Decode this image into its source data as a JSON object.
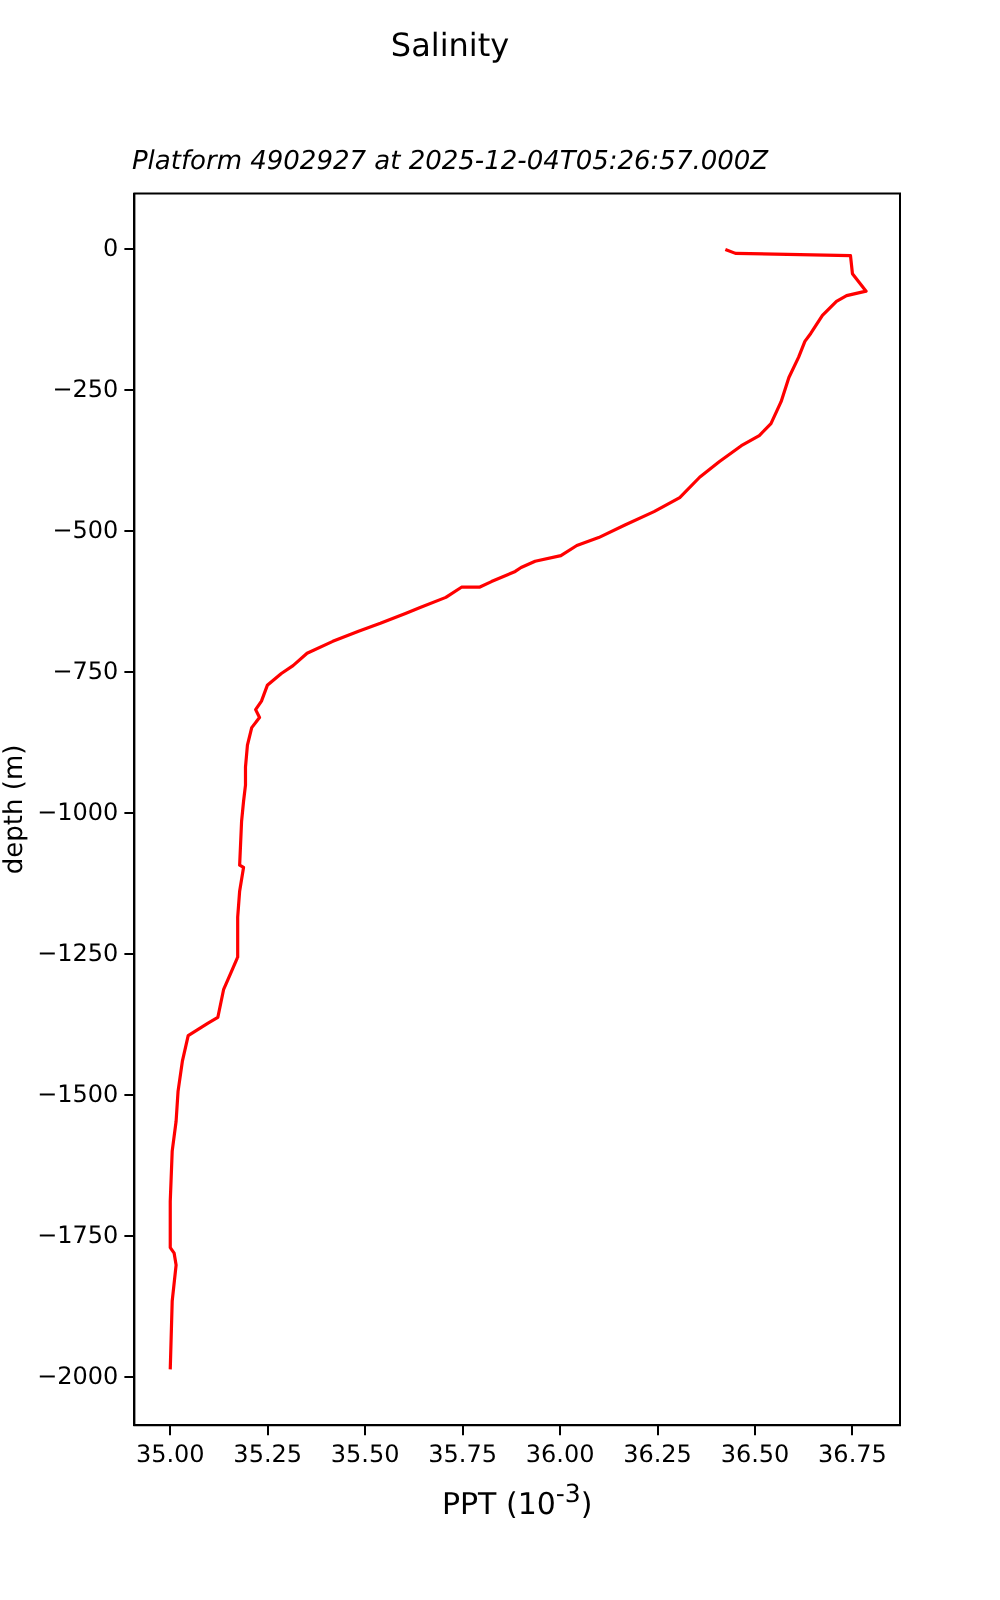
{
  "chart_data": {
    "type": "line",
    "title": "Salinity",
    "subtitle": "Platform 4902927 at 2025-12-04T05:26:57.000Z",
    "xlabel": "PPT (10$^{-3}$)",
    "ylabel": "depth (m)",
    "series": [
      {
        "color": "#ff0000",
        "x": [
          36.424,
          36.45,
          36.745,
          36.75,
          36.785,
          36.735,
          36.709,
          36.673,
          36.643,
          36.628,
          36.612,
          36.587,
          36.567,
          36.541,
          36.511,
          36.465,
          36.409,
          36.358,
          36.307,
          36.241,
          36.165,
          36.099,
          36.043,
          36.002,
          35.936,
          35.9,
          35.885,
          35.824,
          35.793,
          35.747,
          35.707,
          35.641,
          35.605,
          35.539,
          35.483,
          35.417,
          35.351,
          35.315,
          35.285,
          35.249,
          35.234,
          35.219,
          35.229,
          35.209,
          35.198,
          35.193,
          35.193,
          35.188,
          35.183,
          35.178,
          35.188,
          35.178,
          35.173,
          35.173,
          35.153,
          35.137,
          35.122,
          35.097,
          35.046,
          35.031,
          35.02,
          35.015,
          35.005,
          35.0,
          35.0,
          35.01,
          35.015,
          35.005,
          35.0
        ],
        "values": [
          0,
          -7,
          -11,
          -43,
          -74,
          -82,
          -92,
          -117,
          -149,
          -163,
          -191,
          -227,
          -270,
          -309,
          -330,
          -348,
          -376,
          -404,
          -440,
          -465,
          -489,
          -511,
          -525,
          -543,
          -553,
          -564,
          -571,
          -589,
          -599,
          -599,
          -617,
          -635,
          -645,
          -663,
          -677,
          -695,
          -716,
          -738,
          -752,
          -773,
          -801,
          -816,
          -830,
          -848,
          -879,
          -918,
          -950,
          -979,
          -1014,
          -1092,
          -1096,
          -1138,
          -1184,
          -1255,
          -1287,
          -1312,
          -1362,
          -1372,
          -1394,
          -1440,
          -1493,
          -1546,
          -1599,
          -1688,
          -1770,
          -1780,
          -1801,
          -1865,
          -1986
        ]
      }
    ],
    "xlim": [
      34.908,
      36.872
    ],
    "xticks": [
      {
        "value": 35.0,
        "label": "35.00"
      },
      {
        "value": 35.25,
        "label": "35.25"
      },
      {
        "value": 35.5,
        "label": "35.50"
      },
      {
        "value": 35.75,
        "label": "35.75"
      },
      {
        "value": 36.0,
        "label": "36.00"
      },
      {
        "value": 36.25,
        "label": "36.25"
      },
      {
        "value": 36.5,
        "label": "36.50"
      },
      {
        "value": 36.75,
        "label": "36.75"
      }
    ],
    "ylim": [
      -2085,
      99
    ],
    "yticks": [
      0,
      {
        "value": -250,
        "label": "−250"
      },
      {
        "value": -500,
        "label": "−500"
      },
      {
        "value": -750,
        "label": "−750"
      },
      {
        "value": -1000,
        "label": "−1000"
      },
      {
        "value": -1250,
        "label": "−1250"
      },
      {
        "value": -1500,
        "label": "−1500"
      },
      {
        "value": -1750,
        "label": "−1750"
      },
      {
        "value": -2000,
        "label": "−2000"
      }
    ],
    "grid": false,
    "legend": false,
    "line_style": "solid",
    "marker": "none"
  }
}
